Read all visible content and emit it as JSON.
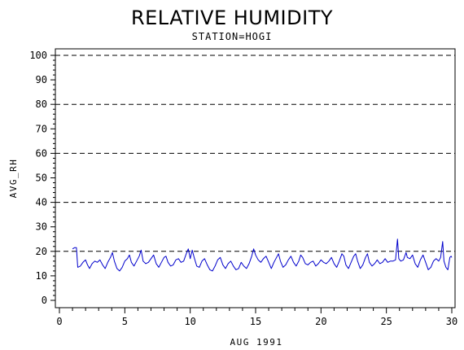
{
  "chart_data": {
    "type": "line",
    "title": "RELATIVE HUMIDITY",
    "subtitle": "STATION=HOGI",
    "xlabel": "AUG 1991",
    "ylabel": "AVG_RH",
    "xlim": [
      0,
      30
    ],
    "ylim": [
      0,
      100
    ],
    "x_ticks": [
      0,
      5,
      10,
      15,
      20,
      25,
      30
    ],
    "y_ticks": [
      0,
      10,
      20,
      30,
      40,
      50,
      60,
      70,
      80,
      90,
      100
    ],
    "grid": "horizontal dashed every 20",
    "grid_lines": [
      20,
      40,
      60,
      80,
      100
    ],
    "line_color": "#0000cc",
    "series": [
      {
        "values": [
          [
            1.0,
            21.0
          ],
          [
            1.15,
            21.5
          ],
          [
            1.3,
            21.5
          ],
          [
            1.4,
            13.5
          ],
          [
            1.6,
            14.0
          ],
          [
            1.8,
            15.5
          ],
          [
            2.0,
            16.5
          ],
          [
            2.15,
            14.5
          ],
          [
            2.3,
            13.0
          ],
          [
            2.5,
            15.0
          ],
          [
            2.7,
            16.0
          ],
          [
            2.9,
            15.5
          ],
          [
            3.1,
            16.5
          ],
          [
            3.3,
            14.5
          ],
          [
            3.5,
            13.0
          ],
          [
            3.7,
            15.5
          ],
          [
            3.9,
            17.5
          ],
          [
            4.05,
            19.5
          ],
          [
            4.2,
            16.0
          ],
          [
            4.4,
            13.0
          ],
          [
            4.6,
            12.0
          ],
          [
            4.8,
            13.5
          ],
          [
            5.0,
            16.0
          ],
          [
            5.2,
            17.0
          ],
          [
            5.35,
            18.5
          ],
          [
            5.5,
            15.5
          ],
          [
            5.7,
            14.0
          ],
          [
            5.9,
            16.0
          ],
          [
            6.1,
            18.0
          ],
          [
            6.25,
            20.5
          ],
          [
            6.4,
            16.0
          ],
          [
            6.6,
            15.0
          ],
          [
            6.8,
            15.5
          ],
          [
            7.0,
            17.0
          ],
          [
            7.2,
            18.5
          ],
          [
            7.4,
            15.0
          ],
          [
            7.6,
            13.5
          ],
          [
            7.8,
            15.5
          ],
          [
            8.0,
            17.5
          ],
          [
            8.15,
            18.0
          ],
          [
            8.3,
            15.5
          ],
          [
            8.5,
            14.0
          ],
          [
            8.7,
            14.5
          ],
          [
            8.9,
            16.5
          ],
          [
            9.1,
            17.0
          ],
          [
            9.3,
            15.5
          ],
          [
            9.5,
            16.0
          ],
          [
            9.7,
            19.0
          ],
          [
            9.85,
            21.0
          ],
          [
            10.0,
            17.0
          ],
          [
            10.15,
            20.5
          ],
          [
            10.3,
            17.5
          ],
          [
            10.5,
            14.0
          ],
          [
            10.7,
            13.5
          ],
          [
            10.9,
            16.0
          ],
          [
            11.1,
            17.0
          ],
          [
            11.3,
            14.5
          ],
          [
            11.5,
            12.5
          ],
          [
            11.7,
            12.0
          ],
          [
            11.9,
            14.0
          ],
          [
            12.1,
            16.5
          ],
          [
            12.3,
            17.5
          ],
          [
            12.5,
            14.5
          ],
          [
            12.7,
            13.0
          ],
          [
            12.9,
            15.0
          ],
          [
            13.1,
            16.0
          ],
          [
            13.3,
            14.0
          ],
          [
            13.5,
            12.5
          ],
          [
            13.7,
            13.0
          ],
          [
            13.9,
            15.5
          ],
          [
            14.1,
            14.0
          ],
          [
            14.3,
            13.0
          ],
          [
            14.5,
            15.0
          ],
          [
            14.7,
            18.0
          ],
          [
            14.85,
            21.0
          ],
          [
            15.0,
            18.5
          ],
          [
            15.2,
            16.5
          ],
          [
            15.4,
            15.5
          ],
          [
            15.6,
            17.0
          ],
          [
            15.8,
            18.0
          ],
          [
            16.0,
            15.5
          ],
          [
            16.2,
            13.0
          ],
          [
            16.4,
            15.5
          ],
          [
            16.6,
            17.5
          ],
          [
            16.75,
            19.0
          ],
          [
            16.9,
            16.0
          ],
          [
            17.1,
            13.5
          ],
          [
            17.3,
            14.5
          ],
          [
            17.5,
            16.5
          ],
          [
            17.7,
            18.0
          ],
          [
            17.9,
            15.5
          ],
          [
            18.1,
            14.0
          ],
          [
            18.3,
            16.0
          ],
          [
            18.45,
            18.5
          ],
          [
            18.6,
            17.5
          ],
          [
            18.8,
            15.0
          ],
          [
            19.0,
            14.5
          ],
          [
            19.2,
            15.5
          ],
          [
            19.4,
            16.0
          ],
          [
            19.6,
            14.0
          ],
          [
            19.8,
            15.0
          ],
          [
            20.0,
            16.5
          ],
          [
            20.2,
            15.5
          ],
          [
            20.4,
            15.0
          ],
          [
            20.6,
            16.0
          ],
          [
            20.8,
            17.5
          ],
          [
            21.0,
            15.0
          ],
          [
            21.2,
            13.5
          ],
          [
            21.4,
            16.0
          ],
          [
            21.6,
            19.0
          ],
          [
            21.75,
            18.0
          ],
          [
            21.9,
            14.5
          ],
          [
            22.1,
            13.0
          ],
          [
            22.3,
            15.5
          ],
          [
            22.5,
            18.0
          ],
          [
            22.65,
            19.0
          ],
          [
            22.8,
            16.0
          ],
          [
            23.0,
            13.0
          ],
          [
            23.2,
            14.5
          ],
          [
            23.4,
            17.5
          ],
          [
            23.55,
            19.0
          ],
          [
            23.7,
            15.5
          ],
          [
            23.9,
            14.0
          ],
          [
            24.1,
            15.0
          ],
          [
            24.3,
            16.5
          ],
          [
            24.5,
            15.0
          ],
          [
            24.7,
            15.5
          ],
          [
            24.9,
            17.0
          ],
          [
            25.1,
            15.5
          ],
          [
            25.3,
            16.0
          ],
          [
            25.5,
            16.0
          ],
          [
            25.7,
            16.5
          ],
          [
            25.85,
            25.0
          ],
          [
            25.95,
            17.0
          ],
          [
            26.1,
            16.0
          ],
          [
            26.3,
            16.5
          ],
          [
            26.5,
            19.5
          ],
          [
            26.6,
            17.5
          ],
          [
            26.8,
            17.0
          ],
          [
            27.0,
            18.5
          ],
          [
            27.2,
            15.0
          ],
          [
            27.4,
            13.5
          ],
          [
            27.6,
            16.5
          ],
          [
            27.8,
            18.5
          ],
          [
            28.0,
            15.5
          ],
          [
            28.2,
            12.5
          ],
          [
            28.4,
            13.5
          ],
          [
            28.6,
            16.0
          ],
          [
            28.8,
            17.0
          ],
          [
            29.0,
            16.0
          ],
          [
            29.15,
            17.5
          ],
          [
            29.3,
            24.0
          ],
          [
            29.4,
            16.0
          ],
          [
            29.55,
            13.5
          ],
          [
            29.7,
            12.5
          ],
          [
            29.85,
            17.5
          ],
          [
            29.95,
            18.0
          ],
          [
            30.0,
            17.5
          ]
        ]
      }
    ]
  }
}
